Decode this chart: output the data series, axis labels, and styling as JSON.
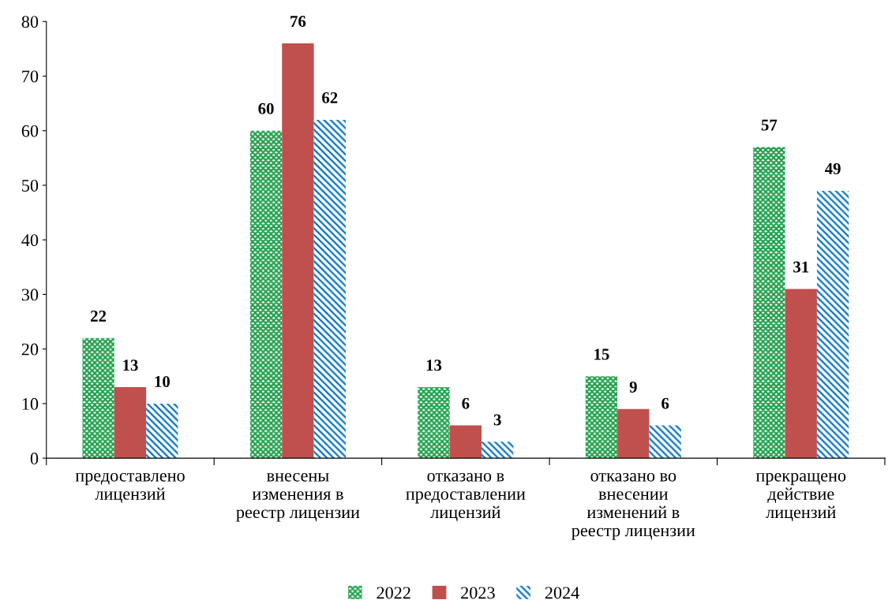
{
  "chart_data": {
    "type": "bar",
    "categories": [
      "предоставлено\nлицензий",
      "внесены\nизменения в\nреестр лицензии",
      "отказано в\nпредоставлении\nлицензий",
      "отказано во\nвнесении\nизменений в\nреестр лицензии",
      "прекращено\nдействие\nлицензий"
    ],
    "series": [
      {
        "name": "2022",
        "color": "#1e9e4a",
        "values": [
          22,
          60,
          13,
          15,
          57
        ]
      },
      {
        "name": "2023",
        "color": "#c0504d",
        "values": [
          13,
          76,
          6,
          9,
          31
        ]
      },
      {
        "name": "2024",
        "color": "#0070c0",
        "values": [
          10,
          62,
          3,
          6,
          49
        ]
      }
    ],
    "ylim": [
      0,
      80
    ],
    "yticks": [
      0,
      10,
      20,
      30,
      40,
      50,
      60,
      70,
      80
    ],
    "data_labels": true,
    "grid": false,
    "legend": "bottom"
  }
}
